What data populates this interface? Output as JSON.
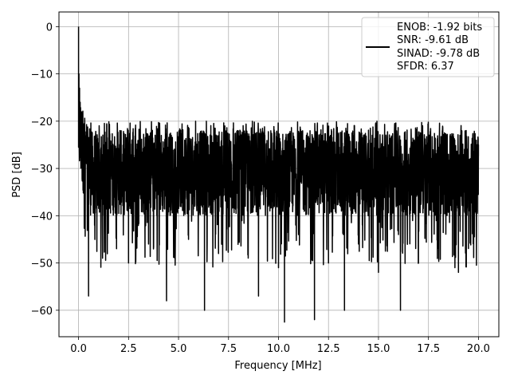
{
  "chart_data": {
    "type": "line",
    "xlabel": "Frequency [MHz]",
    "ylabel": "PSD [dB]",
    "xlim": [
      -0.98,
      21.02
    ],
    "ylim": [
      -65.6,
      3.1
    ],
    "xticks": [
      0.0,
      2.5,
      5.0,
      7.5,
      10.0,
      12.5,
      15.0,
      17.5,
      20.0
    ],
    "xtick_labels": [
      "0.0",
      "2.5",
      "5.0",
      "7.5",
      "10.0",
      "12.5",
      "15.0",
      "17.5",
      "20.0"
    ],
    "yticks": [
      0,
      -10,
      -20,
      -30,
      -40,
      -50,
      -60
    ],
    "ytick_labels": [
      "0",
      "−10",
      "−20",
      "−30",
      "−40",
      "−50",
      "−60"
    ],
    "grid": true,
    "legend_position": "top-right",
    "legend": {
      "line_color": "#000000",
      "entries": [
        "ENOB: -1.92 bits",
        "SNR: -9.61 dB",
        "SINAD: -9.78 dB",
        "SFDR: 6.37"
      ]
    },
    "series": [
      {
        "color": "#000000",
        "x": [
          0.0,
          0.02,
          0.05,
          0.08,
          0.12,
          0.16,
          0.2,
          0.3,
          0.4,
          0.5,
          0.6,
          0.8,
          1.0,
          1.2,
          1.5,
          1.9,
          2.2,
          2.5,
          3.0,
          3.5,
          4.0,
          4.4,
          5.0,
          5.5,
          6.0,
          6.3,
          6.5,
          7.0,
          7.5,
          8.0,
          8.5,
          9.0,
          9.5,
          10.0,
          10.3,
          10.5,
          11.0,
          11.5,
          11.8,
          12.0,
          12.5,
          13.0,
          13.3,
          13.5,
          14.0,
          14.5,
          15.0,
          15.5,
          16.0,
          16.1,
          16.5,
          17.0,
          17.5,
          18.0,
          18.5,
          19.0,
          19.5,
          20.0
        ],
        "y": [
          0,
          -10,
          -13,
          -16,
          -18,
          -22,
          -25,
          -40,
          -29,
          -57,
          -35,
          -42,
          -31,
          -49,
          -27,
          -47,
          -33,
          -50,
          -28,
          -46,
          -30,
          -58,
          -33,
          -45,
          -27,
          -60,
          -35,
          -48,
          -30,
          -45,
          -26,
          -57,
          -32,
          -51,
          -62.5,
          -38,
          -44,
          -29,
          -62,
          -35,
          -50,
          -26,
          -60,
          -34,
          -46,
          -29,
          -52,
          -30,
          -44,
          -60,
          -27,
          -50,
          -33,
          -47,
          -27,
          -52,
          -31,
          -25
        ]
      }
    ]
  }
}
